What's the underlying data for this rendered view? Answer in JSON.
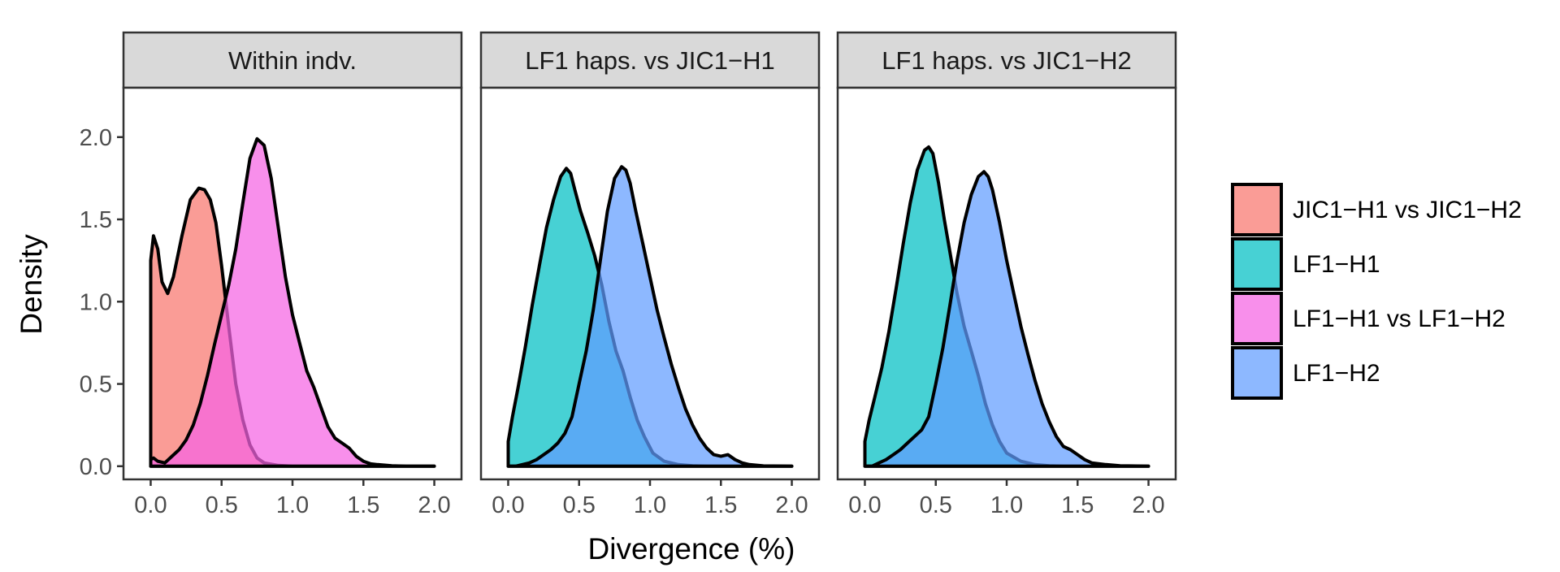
{
  "chart_data": {
    "type": "area",
    "subtype": "density",
    "xlabel": "Divergence (%)",
    "ylabel": "Density",
    "xlim": [
      -0.1,
      2.1
    ],
    "ylim": [
      -0.08,
      2.3
    ],
    "x_ticks": [
      0.0,
      0.5,
      1.0,
      1.5,
      2.0
    ],
    "x_tick_labels": [
      "0.0",
      "0.5",
      "1.0",
      "1.5",
      "2.0"
    ],
    "y_ticks": [
      0.0,
      0.5,
      1.0,
      1.5,
      2.0
    ],
    "y_tick_labels": [
      "0.0",
      "0.5",
      "1.0",
      "1.5",
      "2.0"
    ],
    "legend_position": "right",
    "legend": [
      {
        "name": "JIC1−H1 vs JIC1−H2",
        "color": "#F8766D"
      },
      {
        "name": "LF1−H1",
        "color": "#00BFC4"
      },
      {
        "name": "LF1−H1 vs LF1−H2",
        "color": "#F564E3"
      },
      {
        "name": "LF1−H2",
        "color": "#619CFF"
      }
    ],
    "panels": [
      {
        "title": "Within indv.",
        "series": [
          {
            "name": "JIC1−H1 vs JIC1−H2",
            "color": "#F8766D",
            "x": [
              0.0,
              0.02,
              0.05,
              0.08,
              0.12,
              0.16,
              0.22,
              0.28,
              0.34,
              0.38,
              0.42,
              0.46,
              0.5,
              0.55,
              0.6,
              0.65,
              0.7,
              0.75,
              0.8,
              0.9,
              1.0,
              1.2,
              1.5,
              2.0
            ],
            "y": [
              1.25,
              1.4,
              1.32,
              1.12,
              1.05,
              1.15,
              1.4,
              1.62,
              1.69,
              1.68,
              1.62,
              1.48,
              1.22,
              0.85,
              0.5,
              0.28,
              0.13,
              0.05,
              0.02,
              0.005,
              0.0,
              0.0,
              0.0,
              0.0
            ]
          },
          {
            "name": "LF1−H1 vs LF1−H2",
            "color": "#F564E3",
            "x": [
              0.0,
              0.02,
              0.05,
              0.1,
              0.15,
              0.2,
              0.25,
              0.3,
              0.35,
              0.4,
              0.45,
              0.5,
              0.55,
              0.6,
              0.65,
              0.7,
              0.75,
              0.8,
              0.85,
              0.9,
              0.95,
              1.0,
              1.05,
              1.1,
              1.15,
              1.2,
              1.25,
              1.3,
              1.35,
              1.4,
              1.45,
              1.5,
              1.55,
              1.6,
              1.7,
              1.8,
              2.0
            ],
            "y": [
              0.04,
              0.05,
              0.03,
              0.02,
              0.06,
              0.1,
              0.16,
              0.25,
              0.38,
              0.55,
              0.74,
              0.92,
              1.1,
              1.32,
              1.6,
              1.87,
              1.99,
              1.95,
              1.75,
              1.45,
              1.15,
              0.92,
              0.75,
              0.58,
              0.48,
              0.36,
              0.24,
              0.17,
              0.14,
              0.11,
              0.06,
              0.03,
              0.015,
              0.01,
              0.003,
              0.0,
              0.0
            ]
          }
        ]
      },
      {
        "title": "LF1 haps. vs JIC1−H1",
        "series": [
          {
            "name": "LF1−H1",
            "color": "#00BFC4",
            "x": [
              0.0,
              0.03,
              0.07,
              0.12,
              0.17,
              0.22,
              0.27,
              0.32,
              0.37,
              0.41,
              0.44,
              0.47,
              0.51,
              0.56,
              0.61,
              0.66,
              0.71,
              0.76,
              0.81,
              0.86,
              0.91,
              0.96,
              1.02,
              1.1,
              1.2,
              1.3,
              1.4,
              1.6,
              2.0
            ],
            "y": [
              0.15,
              0.3,
              0.48,
              0.72,
              0.98,
              1.22,
              1.45,
              1.62,
              1.76,
              1.81,
              1.78,
              1.68,
              1.55,
              1.42,
              1.28,
              1.1,
              0.88,
              0.7,
              0.58,
              0.42,
              0.28,
              0.18,
              0.08,
              0.03,
              0.01,
              0.003,
              0.0,
              0.0,
              0.0
            ]
          },
          {
            "name": "LF1−H2",
            "color": "#619CFF",
            "x": [
              0.0,
              0.05,
              0.1,
              0.15,
              0.2,
              0.25,
              0.3,
              0.35,
              0.4,
              0.45,
              0.5,
              0.55,
              0.6,
              0.65,
              0.7,
              0.75,
              0.8,
              0.83,
              0.86,
              0.9,
              0.95,
              1.0,
              1.05,
              1.1,
              1.15,
              1.2,
              1.25,
              1.3,
              1.35,
              1.4,
              1.45,
              1.5,
              1.55,
              1.6,
              1.65,
              1.7,
              1.8,
              2.0
            ],
            "y": [
              0.0,
              0.0,
              0.01,
              0.02,
              0.04,
              0.07,
              0.1,
              0.14,
              0.2,
              0.3,
              0.5,
              0.7,
              0.95,
              1.25,
              1.55,
              1.75,
              1.82,
              1.8,
              1.72,
              1.55,
              1.35,
              1.15,
              0.95,
              0.78,
              0.62,
              0.48,
              0.35,
              0.25,
              0.17,
              0.11,
              0.07,
              0.06,
              0.07,
              0.04,
              0.02,
              0.01,
              0.002,
              0.0
            ]
          }
        ]
      },
      {
        "title": "LF1 haps. vs JIC1−H2",
        "series": [
          {
            "name": "LF1−H1",
            "color": "#00BFC4",
            "x": [
              0.0,
              0.03,
              0.07,
              0.12,
              0.17,
              0.22,
              0.27,
              0.32,
              0.37,
              0.42,
              0.45,
              0.48,
              0.52,
              0.56,
              0.6,
              0.65,
              0.7,
              0.75,
              0.8,
              0.85,
              0.9,
              0.95,
              1.0,
              1.1,
              1.2,
              1.3,
              1.4,
              1.6,
              2.0
            ],
            "y": [
              0.15,
              0.28,
              0.42,
              0.6,
              0.82,
              1.08,
              1.35,
              1.6,
              1.8,
              1.92,
              1.94,
              1.9,
              1.72,
              1.5,
              1.3,
              1.05,
              0.85,
              0.7,
              0.55,
              0.38,
              0.25,
              0.15,
              0.08,
              0.03,
              0.01,
              0.003,
              0.0,
              0.0,
              0.0
            ]
          },
          {
            "name": "LF1−H2",
            "color": "#619CFF",
            "x": [
              0.0,
              0.05,
              0.1,
              0.15,
              0.2,
              0.25,
              0.3,
              0.35,
              0.4,
              0.45,
              0.5,
              0.55,
              0.6,
              0.65,
              0.7,
              0.75,
              0.8,
              0.84,
              0.87,
              0.9,
              0.95,
              1.0,
              1.05,
              1.1,
              1.15,
              1.2,
              1.25,
              1.3,
              1.35,
              1.4,
              1.45,
              1.5,
              1.55,
              1.6,
              1.7,
              1.8,
              2.0
            ],
            "y": [
              0.0,
              0.0,
              0.02,
              0.04,
              0.07,
              0.1,
              0.14,
              0.18,
              0.22,
              0.3,
              0.5,
              0.72,
              0.98,
              1.25,
              1.48,
              1.65,
              1.76,
              1.79,
              1.76,
              1.68,
              1.48,
              1.25,
              1.05,
              0.85,
              0.68,
              0.52,
              0.38,
              0.27,
              0.18,
              0.12,
              0.1,
              0.07,
              0.04,
              0.02,
              0.01,
              0.003,
              0.0
            ]
          }
        ]
      }
    ]
  }
}
